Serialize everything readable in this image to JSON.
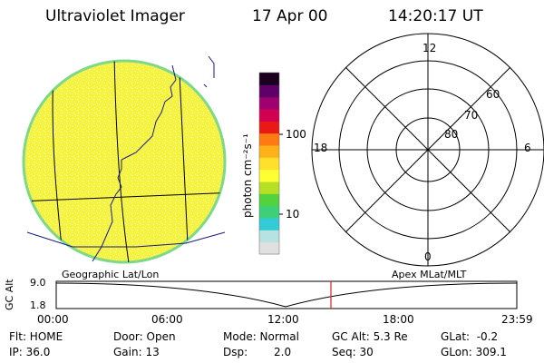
{
  "header": {
    "instrument": "Ultraviolet Imager",
    "date": "17 Apr 00",
    "time": "14:20:17 UT"
  },
  "colorbar": {
    "label": "photon cm⁻²s⁻¹",
    "ticks": [
      "100",
      "10"
    ],
    "colors": [
      "#e0e0e0",
      "#b8e2e2",
      "#33ccd6",
      "#3dcf7a",
      "#52d23c",
      "#b5e023",
      "#ffff33",
      "#ffe02b",
      "#ffb11a",
      "#ff7a10",
      "#e81916",
      "#d10050",
      "#9e0070",
      "#5f0069",
      "#1c0020"
    ]
  },
  "polar": {
    "mlt_labels": [
      "12",
      "18",
      "6",
      "0"
    ],
    "lat_labels": [
      "60",
      "70",
      "80"
    ]
  },
  "timeline": {
    "left_title": "Geographic Lat/Lon",
    "right_title": "Apex MLat/MLT",
    "axis_label": "GC Alt",
    "y_ticks": [
      "9.0",
      "1.8"
    ],
    "x_ticks": [
      "00:00",
      "06:00",
      "12:00",
      "18:00",
      "23:59"
    ],
    "current_time_marker": "14:20:17",
    "marker_color": "#e02020"
  },
  "status": {
    "flt": "Flt: HOME",
    "door": "Door: Open",
    "mode": "Mode: Normal",
    "gc_alt": "GC Alt: 5.3 Re",
    "glat": "GLat:  -0.2",
    "ip": "IP: 36.0",
    "gain": "Gain: 13",
    "dsp_label": "Dsp:",
    "dsp_value": "2.0",
    "seq": "Seq: 30",
    "glon": "GLon: 309.1"
  },
  "image_colors": {
    "disk_fill": "#f4f23a",
    "limb": "#7fd88a",
    "coast": "#1a1a80",
    "grid": "#000000"
  }
}
